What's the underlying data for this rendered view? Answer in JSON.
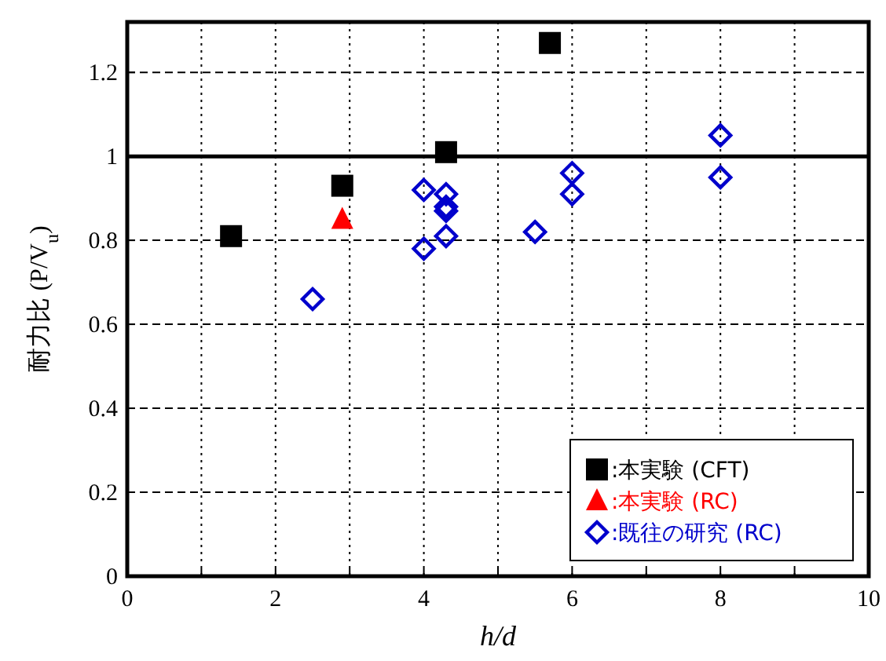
{
  "chart_data": {
    "type": "scatter",
    "xlabel": "h/d",
    "ylabel": "耐力比 (P/V$_{u}$)",
    "xlim": [
      0,
      10
    ],
    "ylim": [
      0,
      1.32
    ],
    "xticks": [
      0,
      {
        "value": 1,
        "label": null
      },
      2,
      {
        "value": 3,
        "label": null
      },
      4,
      {
        "value": 5,
        "label": null
      },
      6,
      {
        "value": 7,
        "label": null
      },
      8,
      {
        "value": 9,
        "label": null
      },
      10
    ],
    "yticks": [
      0,
      0.2,
      0.4,
      0.6,
      0.8,
      1,
      1.2
    ],
    "grid": true,
    "legend": "bottom right",
    "ref_lines": [
      {
        "axis": "y",
        "value": 1,
        "color": "#000000",
        "line_style": "solid"
      }
    ],
    "series": [
      {
        "name": ":本実験 (CFT)",
        "color": "#000000",
        "marker": "square",
        "x": [
          1.4,
          2.9,
          4.3,
          5.7
        ],
        "values": [
          0.81,
          0.93,
          1.01,
          1.27
        ]
      },
      {
        "name": ":本実験 (RC)",
        "color": "#ff0000",
        "marker": "triangle",
        "x": [
          2.9
        ],
        "values": [
          0.85
        ]
      },
      {
        "name": ":既往の研究 (RC)",
        "color": "#0000cc",
        "marker": "diamond",
        "x": [
          2.5,
          4.0,
          4.0,
          4.3,
          4.3,
          4.3,
          4.3,
          5.5,
          6.0,
          6.0,
          8.0,
          8.0
        ],
        "values": [
          0.66,
          0.92,
          0.78,
          0.91,
          0.88,
          0.87,
          0.81,
          0.82,
          0.96,
          0.91,
          1.05,
          0.95
        ]
      }
    ]
  }
}
